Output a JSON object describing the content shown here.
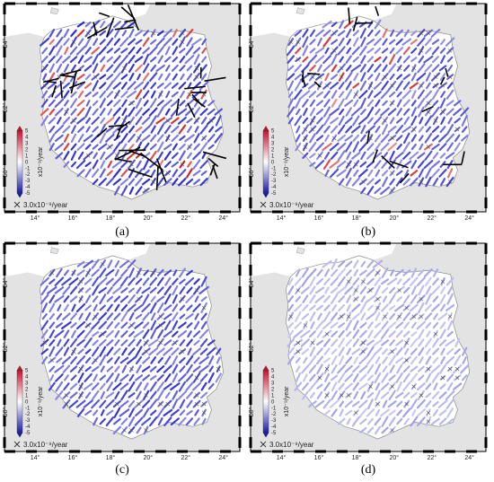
{
  "panels": [
    {
      "id": "a",
      "caption": "(a)",
      "arrow_intensity": 1.0,
      "blue_saturation": 1.0,
      "red_share": 0.12
    },
    {
      "id": "b",
      "caption": "(b)",
      "arrow_intensity": 0.45,
      "blue_saturation": 0.9,
      "red_share": 0.08
    },
    {
      "id": "c",
      "caption": "(c)",
      "arrow_intensity": 0.0,
      "blue_saturation": 0.95,
      "red_share": 0.0
    },
    {
      "id": "d",
      "caption": "(d)",
      "arrow_intensity": 0.0,
      "blue_saturation": 0.45,
      "red_share": 0.0
    }
  ],
  "axes": {
    "lon_ticks": [
      "14°",
      "16°",
      "18°",
      "20°",
      "22°",
      "24°"
    ],
    "lat_ticks": [
      "54°",
      "52°",
      "50°"
    ]
  },
  "colorbar": {
    "ticks": [
      "5",
      "4",
      "3",
      "2",
      "1",
      "0",
      "-1",
      "-2",
      "-3",
      "-4",
      "-5"
    ],
    "unit_label": "x10⁻⁹/year",
    "top_color": "#c8102e",
    "mid_color": "#ffffff",
    "bottom_color": "#1a1aa8"
  },
  "scale_legend": "3.0x10⁻⁹/year",
  "colors": {
    "land": "#e3e3e3",
    "land_stroke": "#9a9a9a",
    "frame_dark": "#000000",
    "frame_light": "#ffffff",
    "bar_blue": "#2a2ad0",
    "bar_red": "#d01818",
    "arrow": "#000000"
  }
}
